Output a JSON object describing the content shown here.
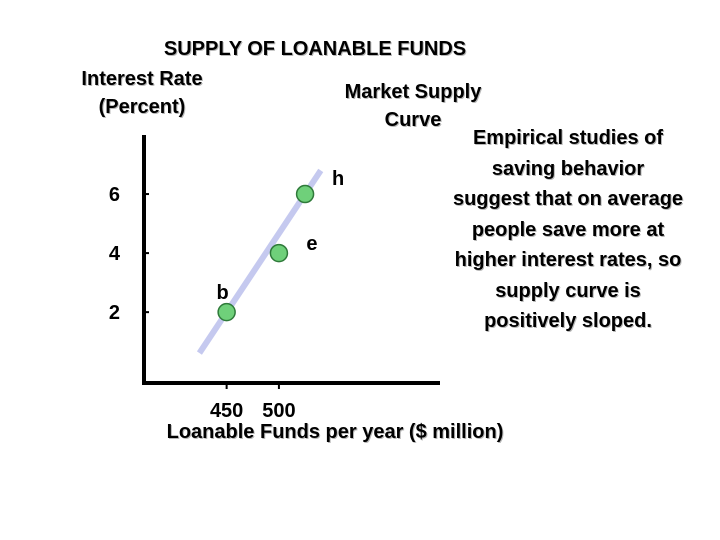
{
  "chart_data": {
    "type": "line",
    "title": "SUPPLY OF LOANABLE  FUNDS",
    "ylabel": "Interest Rate (Percent)",
    "xlabel": "Loanable Funds per year ($ million)",
    "series": [
      {
        "name": "Market Supply Curve",
        "x": [
          450,
          500,
          525
        ],
        "y": [
          2,
          4,
          6
        ],
        "labels": [
          "b",
          "e",
          "h"
        ]
      }
    ],
    "x_ticks": [
      450,
      500
    ],
    "y_ticks": [
      2,
      4,
      6
    ],
    "xlim": [
      371,
      654
    ],
    "ylim": [
      -0.4,
      8
    ],
    "grid": false,
    "annotation": "Empirical studies of saving behavior suggest that on average people save more at higher interest rates, so supply curve is positively sloped."
  },
  "colors": {
    "curve": "#c5c9ef",
    "point": "#6fd07a",
    "point_stroke": "#2f7a3a",
    "axis": "#000000"
  }
}
